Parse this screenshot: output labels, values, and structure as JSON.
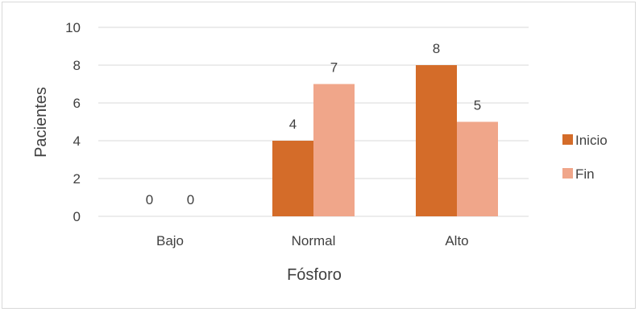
{
  "chart_data": {
    "type": "bar",
    "categories": [
      "Bajo",
      "Normal",
      "Alto"
    ],
    "series": [
      {
        "name": "Inicio",
        "values": [
          0,
          4,
          8
        ],
        "color": "#d46c29"
      },
      {
        "name": "Fin",
        "values": [
          0,
          7,
          5
        ],
        "color": "#f0a68a"
      }
    ],
    "xlabel": "Fósforo",
    "ylabel": "Pacientes",
    "ylim": [
      0,
      10
    ],
    "yticks": [
      0,
      2,
      4,
      6,
      8,
      10
    ],
    "grid": true,
    "legend": "right",
    "data_labels": true
  }
}
